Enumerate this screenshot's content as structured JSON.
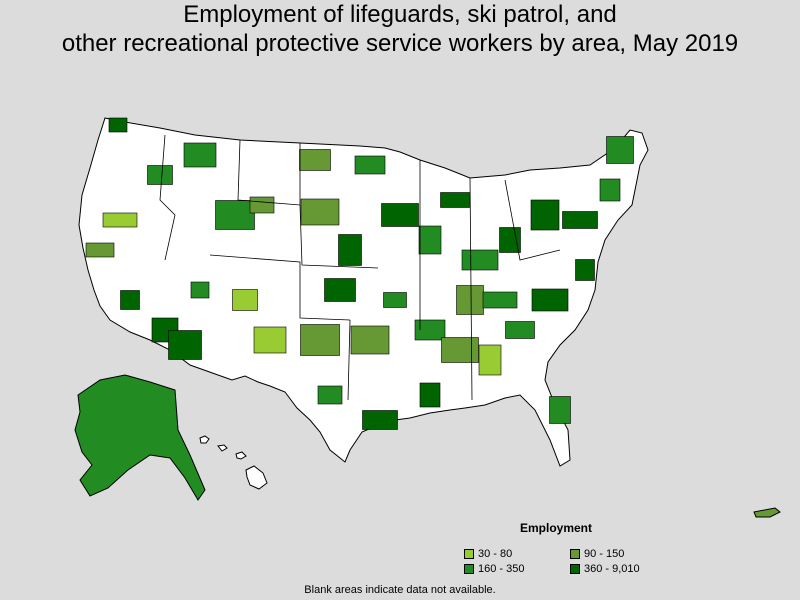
{
  "title": {
    "line1": "Employment of lifeguards, ski patrol, and",
    "line2": "other recreational protective service workers by area, May 2019"
  },
  "legend": {
    "title": "Employment",
    "items": [
      {
        "label": "30 - 80",
        "color": "#99cc33"
      },
      {
        "label": "90 - 150",
        "color": "#669933"
      },
      {
        "label": "160 - 350",
        "color": "#228b22"
      },
      {
        "label": "360 - 9,010",
        "color": "#006400"
      }
    ]
  },
  "footnote": "Blank areas indicate data not available.",
  "colors": {
    "background": "#dcdcdc",
    "no_data": "#ffffff",
    "border": "#000000"
  }
}
